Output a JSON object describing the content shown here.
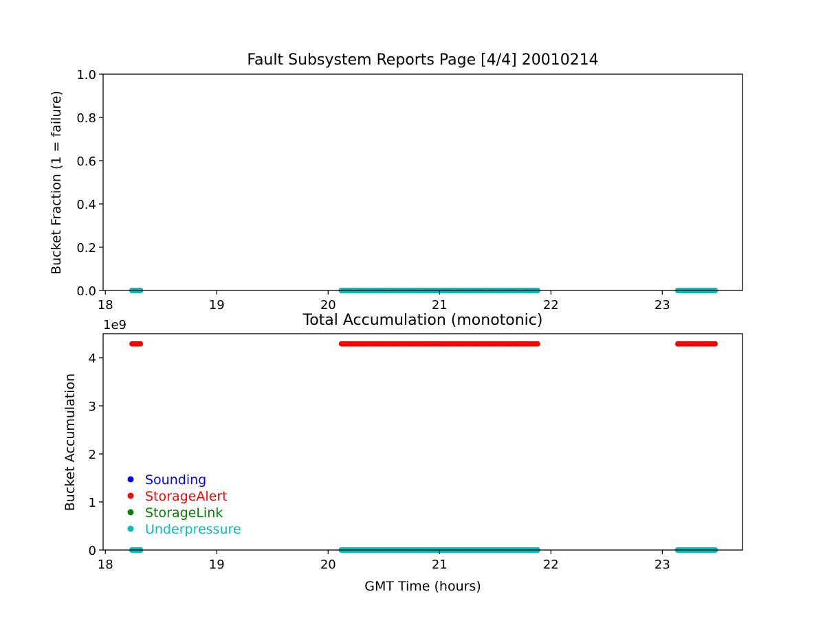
{
  "chart_data": [
    {
      "type": "scatter",
      "title": "Fault Subsystem Reports Page [4/4] 20010214",
      "xlabel": "",
      "ylabel": "Bucket Fraction (1 = failure)",
      "xlim": [
        17.98,
        23.72
      ],
      "ylim": [
        0.0,
        1.0
      ],
      "xticks": [
        18,
        19,
        20,
        21,
        22,
        23
      ],
      "xtick_labels": [
        "18",
        "19",
        "20",
        "21",
        "22",
        "23"
      ],
      "yticks": [
        0.0,
        0.2,
        0.4,
        0.6,
        0.8,
        1.0
      ],
      "ytick_labels": [
        "0.0",
        "0.2",
        "0.4",
        "0.6",
        "0.8",
        "1.0"
      ],
      "grid": false,
      "series": [
        {
          "name": "Sounding",
          "color": "#0000ff",
          "segments": [
            {
              "x": [
                18.24,
                18.33
              ],
              "y": 0.0
            },
            {
              "x": [
                20.12,
                21.88
              ],
              "y": 0.0
            },
            {
              "x": [
                23.14,
                23.49
              ],
              "y": 0.0
            }
          ]
        },
        {
          "name": "StorageAlert",
          "color": "#ff0000",
          "segments": [
            {
              "x": [
                18.24,
                18.33
              ],
              "y": 0.0
            },
            {
              "x": [
                20.12,
                21.88
              ],
              "y": 0.0
            },
            {
              "x": [
                23.14,
                23.49
              ],
              "y": 0.0
            }
          ]
        },
        {
          "name": "StorageLink",
          "color": "#008000",
          "segments": [
            {
              "x": [
                18.24,
                18.33
              ],
              "y": 0.0
            },
            {
              "x": [
                20.12,
                21.88
              ],
              "y": 0.0
            },
            {
              "x": [
                23.14,
                23.49
              ],
              "y": 0.0
            }
          ]
        },
        {
          "name": "Underpressure",
          "color": "#00bfbf",
          "segments": [
            {
              "x": [
                18.24,
                18.33
              ],
              "y": 0.0
            },
            {
              "x": [
                20.12,
                21.88
              ],
              "y": 0.0
            },
            {
              "x": [
                23.14,
                23.49
              ],
              "y": 0.0
            }
          ]
        }
      ]
    },
    {
      "type": "scatter",
      "title": "Total Accumulation (monotonic)",
      "xlabel": "GMT Time (hours)",
      "ylabel": "Bucket Accumulation",
      "y_offset_label": "1e9",
      "xlim": [
        17.98,
        23.72
      ],
      "ylim": [
        0.0,
        4.5
      ],
      "xticks": [
        18,
        19,
        20,
        21,
        22,
        23
      ],
      "xtick_labels": [
        "18",
        "19",
        "20",
        "21",
        "22",
        "23"
      ],
      "yticks": [
        0,
        1,
        2,
        3,
        4
      ],
      "ytick_labels": [
        "0",
        "1",
        "2",
        "3",
        "4"
      ],
      "grid": false,
      "legend": {
        "placement": "lower-left",
        "entries": [
          "Sounding",
          "StorageAlert",
          "StorageLink",
          "Underpressure"
        ]
      },
      "series": [
        {
          "name": "Sounding",
          "color": "#0000ff",
          "segments": [
            {
              "x": [
                18.24,
                18.33
              ],
              "y": 0.0
            },
            {
              "x": [
                20.12,
                21.88
              ],
              "y": 0.0
            },
            {
              "x": [
                23.14,
                23.49
              ],
              "y": 0.0
            }
          ]
        },
        {
          "name": "StorageAlert",
          "color": "#ff0000",
          "segments": [
            {
              "x": [
                18.24,
                18.33
              ],
              "y": 4.29
            },
            {
              "x": [
                20.12,
                21.88
              ],
              "y": 4.29
            },
            {
              "x": [
                23.14,
                23.49
              ],
              "y": 4.29
            }
          ]
        },
        {
          "name": "StorageLink",
          "color": "#008000",
          "segments": [
            {
              "x": [
                18.24,
                18.33
              ],
              "y": 0.0
            },
            {
              "x": [
                20.12,
                21.88
              ],
              "y": 0.0
            },
            {
              "x": [
                23.14,
                23.49
              ],
              "y": 0.0
            }
          ]
        },
        {
          "name": "Underpressure",
          "color": "#00bfbf",
          "segments": [
            {
              "x": [
                18.24,
                18.33
              ],
              "y": 0.0
            },
            {
              "x": [
                20.12,
                21.88
              ],
              "y": 0.0
            },
            {
              "x": [
                23.14,
                23.49
              ],
              "y": 0.0
            }
          ]
        }
      ]
    }
  ]
}
